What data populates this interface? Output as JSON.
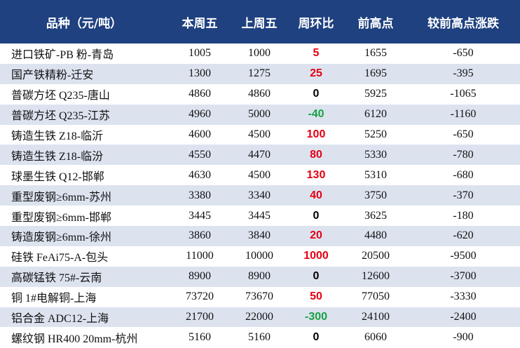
{
  "table": {
    "header": [
      "品种（元/吨）",
      "本周五",
      "上周五",
      "周环比",
      "前高点",
      "较前高点涨跌"
    ],
    "rows": [
      [
        "进口铁矿-PB 粉-青岛",
        "1005",
        "1000",
        "5",
        "1655",
        "-650"
      ],
      [
        "国产铁精粉-迁安",
        "1300",
        "1275",
        "25",
        "1695",
        "-395"
      ],
      [
        "普碳方坯 Q235-唐山",
        "4860",
        "4860",
        "0",
        "5925",
        "-1065"
      ],
      [
        "普碳方坯 Q235-江苏",
        "4960",
        "5000",
        "-40",
        "6120",
        "-1160"
      ],
      [
        "铸造生铁 Z18-临沂",
        "4600",
        "4500",
        "100",
        "5250",
        "-650"
      ],
      [
        "铸造生铁 Z18-临汾",
        "4550",
        "4470",
        "80",
        "5330",
        "-780"
      ],
      [
        "球墨生铁 Q12-邯郸",
        "4630",
        "4500",
        "130",
        "5310",
        "-680"
      ],
      [
        "重型废钢≥6mm-苏州",
        "3380",
        "3340",
        "40",
        "3750",
        "-370"
      ],
      [
        "重型废钢≥6mm-邯郸",
        "3445",
        "3445",
        "0",
        "3625",
        "-180"
      ],
      [
        "铸造废钢≥6mm-徐州",
        "3860",
        "3840",
        "20",
        "4480",
        "-620"
      ],
      [
        "硅铁 FeAi75-A-包头",
        "11000",
        "10000",
        "1000",
        "20500",
        "-9500"
      ],
      [
        "高碳锰铁 75#-云南",
        "8900",
        "8900",
        "0",
        "12600",
        "-3700"
      ],
      [
        "铜 1#电解铜-上海",
        "73720",
        "73670",
        "50",
        "77050",
        "-3330"
      ],
      [
        "铝合金 ADC12-上海",
        "21700",
        "22000",
        "-300",
        "24100",
        "-2400"
      ],
      [
        "螺纹钢 HR400 20mm-杭州",
        "5160",
        "5160",
        "0",
        "6060",
        "-900"
      ]
    ]
  }
}
